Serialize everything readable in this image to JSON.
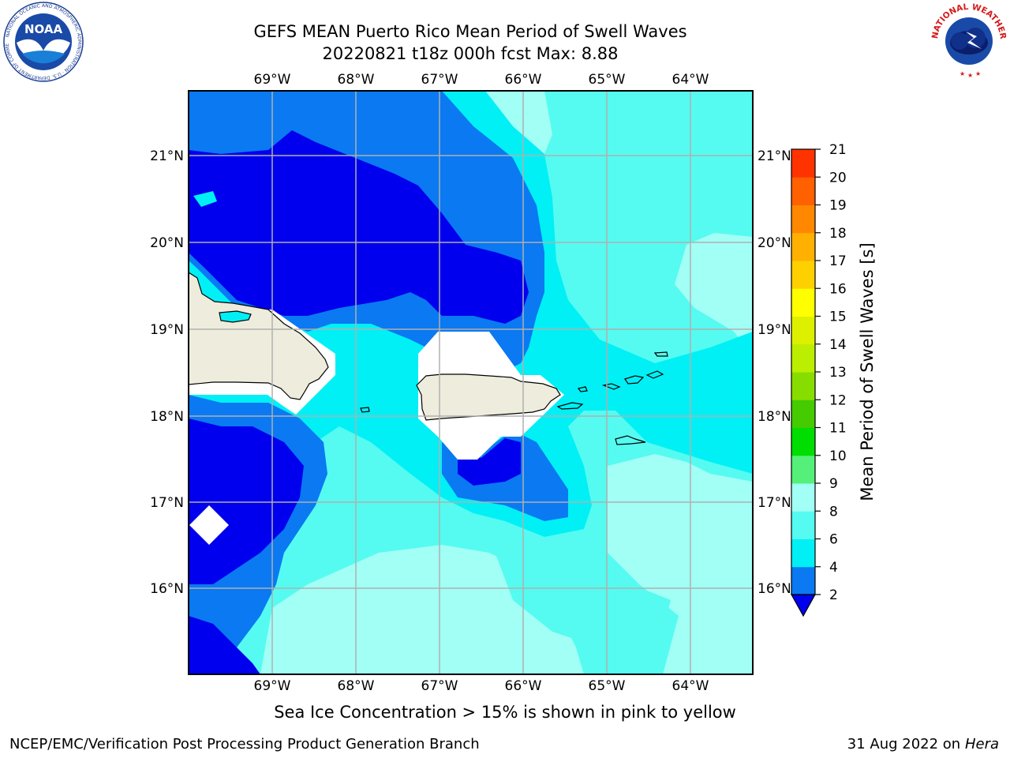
{
  "header": {
    "title_line1": "GEFS MEAN Puerto Rico Mean Period of Swell Waves",
    "title_line2": "20220821 t18z 000h fcst   Max: 8.88"
  },
  "logos": {
    "noaa_text": "NOAA",
    "noaa_ring_text": "NATIONAL OCEANIC AND ATMOSPHERIC ADMINISTRATION · U.S. DEPARTMENT OF COMMERCE",
    "nws_ring_text": "NATIONAL WEATHER SERVICE"
  },
  "map": {
    "lon_labels": [
      "69°W",
      "68°W",
      "67°W",
      "66°W",
      "65°W",
      "64°W"
    ],
    "lat_labels": [
      "21°N",
      "20°N",
      "19°N",
      "18°N",
      "17°N",
      "16°N"
    ],
    "colors": {
      "lt2": "#0000ee",
      "b2_4": "#0a79f2",
      "b4_6": "#00f0f5",
      "b6_8": "#55fbf0",
      "b8_9": "#a2fff6",
      "land": "#eeecdc",
      "masked": "#ffffff"
    }
  },
  "colorbar": {
    "label": "Mean Period of Swell Waves [s]",
    "ticks": [
      "2",
      "4",
      "6",
      "8",
      "9",
      "10",
      "11",
      "12",
      "13",
      "14",
      "15",
      "16",
      "17",
      "18",
      "19",
      "20",
      "21"
    ],
    "colors": [
      "#0a79f2",
      "#00f0f5",
      "#55fbf0",
      "#a2fff6",
      "#55f07a",
      "#00dd00",
      "#44cc00",
      "#88dd00",
      "#bbee00",
      "#ddf000",
      "#ffff00",
      "#ffd000",
      "#ffb000",
      "#ff8800",
      "#ff6000",
      "#ff3300"
    ],
    "extend_color": "#0000ee"
  },
  "footer": {
    "caption": "Sea Ice Concentration > 15% is shown in pink to yellow",
    "credit_left": "NCEP/EMC/Verification Post Processing Product Generation Branch",
    "credit_date": "31 Aug 2022 on",
    "credit_machine": "Hera"
  }
}
